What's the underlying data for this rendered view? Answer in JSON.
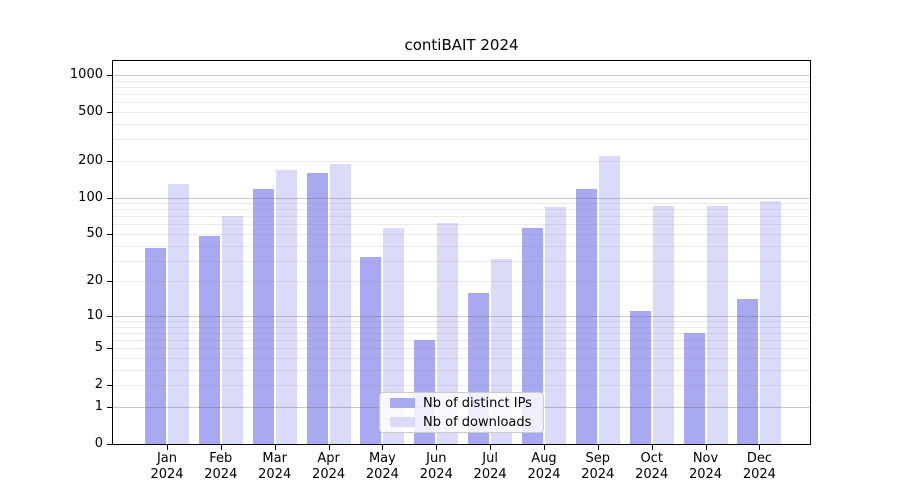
{
  "title": "contiBAIT 2024",
  "chart_data": {
    "type": "bar",
    "title": "contiBAIT 2024",
    "categories": [
      "Jan 2024",
      "Feb 2024",
      "Mar 2024",
      "Apr 2024",
      "May 2024",
      "Jun 2024",
      "Jul 2024",
      "Aug 2024",
      "Sep 2024",
      "Oct 2024",
      "Nov 2024",
      "Dec 2024"
    ],
    "month_labels": [
      "Jan",
      "Feb",
      "Mar",
      "Apr",
      "May",
      "Jun",
      "Jul",
      "Aug",
      "Sep",
      "Oct",
      "Nov",
      "Dec"
    ],
    "year_label": "2024",
    "series": [
      {
        "name": "Nb of distinct IPs",
        "color": "#a9a9f2",
        "values": [
          38,
          48,
          117,
          158,
          32,
          6,
          16,
          56,
          118,
          11,
          7,
          14
        ]
      },
      {
        "name": "Nb of downloads",
        "color": "#dadaf9",
        "values": [
          130,
          71,
          168,
          190,
          56,
          62,
          31,
          83,
          220,
          86,
          85,
          94
        ]
      }
    ],
    "xlabel": "",
    "ylabel": "",
    "yscale": "log10(1+x)",
    "yticks": [
      0,
      1,
      2,
      5,
      10,
      20,
      50,
      100,
      200,
      500,
      1000
    ],
    "ylim": [
      0,
      1300
    ],
    "grid": "horizontal major (decades) + minor gridlines, drawn over bars",
    "legend_position": "lower center",
    "colors": {
      "bar_dark": "#a9a9f2",
      "bar_light": "#dadaf9",
      "grid_major": "#c6c6c6",
      "grid_minor": "#ebebeb",
      "spine": "#000000"
    }
  }
}
